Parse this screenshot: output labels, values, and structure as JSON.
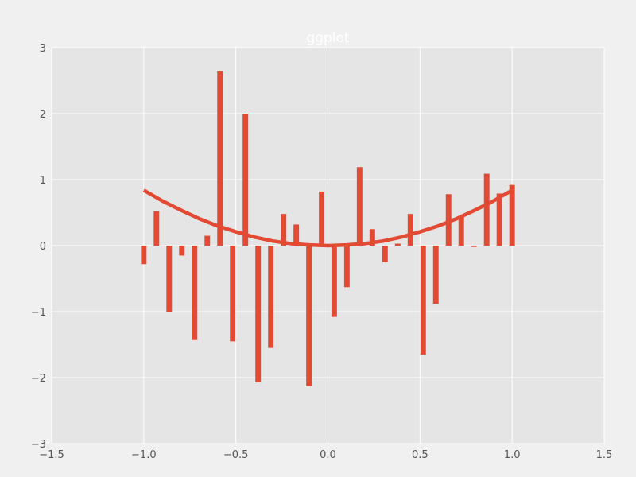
{
  "chart_data": {
    "type": "bar",
    "title": "ggplot",
    "xlabel": "",
    "ylabel": "",
    "xlim": [
      -1.5,
      1.5
    ],
    "ylim": [
      -3,
      3
    ],
    "grid": true,
    "x_ticks": [
      -1.5,
      -1.0,
      -0.5,
      0.0,
      0.5,
      1.0,
      1.5
    ],
    "y_ticks": [
      -3,
      -2,
      -1,
      0,
      1,
      2,
      3
    ],
    "x_tick_labels": [
      "−1.5",
      "−1.0",
      "−0.5",
      "0.0",
      "0.5",
      "1.0",
      "1.5"
    ],
    "y_tick_labels": [
      "−3",
      "−2",
      "−1",
      "0",
      "1",
      "2",
      "3"
    ],
    "bar_width": 0.03,
    "series": [
      {
        "type": "bar",
        "x": [
          -1.0,
          -0.931,
          -0.862,
          -0.793,
          -0.724,
          -0.655,
          -0.586,
          -0.517,
          -0.448,
          -0.379,
          -0.31,
          -0.241,
          -0.172,
          -0.103,
          -0.034,
          0.034,
          0.103,
          0.172,
          0.241,
          0.31,
          0.379,
          0.448,
          0.517,
          0.586,
          0.655,
          0.724,
          0.793,
          0.862,
          0.931,
          1.0
        ],
        "values": [
          -0.28,
          0.52,
          -1.0,
          -0.15,
          -1.43,
          0.15,
          2.65,
          -1.45,
          2.0,
          -2.07,
          -1.55,
          0.48,
          0.32,
          -2.13,
          0.82,
          -1.08,
          -0.63,
          1.19,
          0.25,
          -0.25,
          0.03,
          0.48,
          -1.65,
          -0.88,
          0.78,
          0.44,
          -0.02,
          1.09,
          0.79,
          0.92
        ]
      },
      {
        "type": "line",
        "x": [
          -1.0,
          -0.9,
          -0.8,
          -0.7,
          -0.6,
          -0.5,
          -0.4,
          -0.3,
          -0.2,
          -0.1,
          0.0,
          0.1,
          0.2,
          0.3,
          0.4,
          0.5,
          0.6,
          0.7,
          0.8,
          0.9,
          1.0
        ],
        "values": [
          0.84,
          0.68,
          0.54,
          0.41,
          0.3,
          0.21,
          0.13,
          0.07,
          0.03,
          0.01,
          0.0,
          0.01,
          0.03,
          0.07,
          0.13,
          0.21,
          0.3,
          0.41,
          0.54,
          0.68,
          0.84
        ]
      }
    ],
    "colors": {
      "figure_bg": "#f0f0f0",
      "axes_bg": "#e5e5e5",
      "grid": "#ffffff",
      "bar": "#e24a33",
      "line": "#e24a33",
      "title": "#ffffff",
      "tick_text": "#555555"
    }
  }
}
